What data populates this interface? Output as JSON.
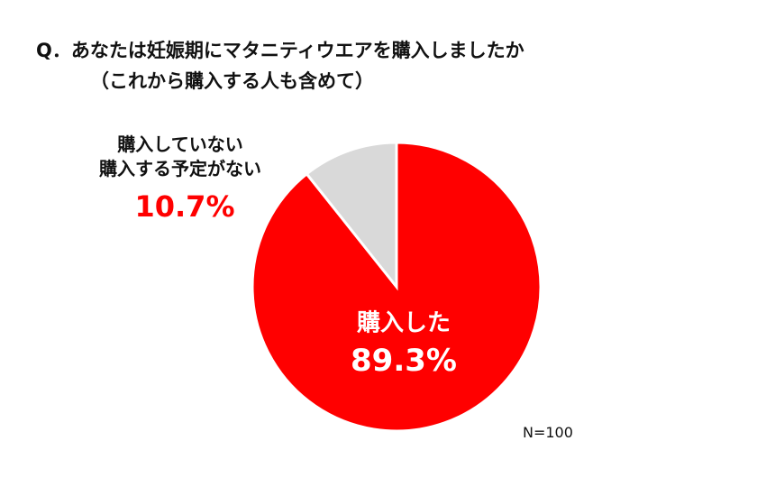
{
  "chart_data": {
    "type": "pie",
    "title": "Q．あなたは妊娠期にマタニティウエアを購入しましたか",
    "subtitle": "（これから購入する人も含めて）",
    "categories": [
      "購入した",
      "購入していない\n購入する予定がない"
    ],
    "values": [
      89.3,
      10.7
    ],
    "value_labels": [
      "89.3%",
      "10.7%"
    ],
    "colors": [
      "#ff0000",
      "#d9d9d9"
    ],
    "annotation": "N=100"
  }
}
